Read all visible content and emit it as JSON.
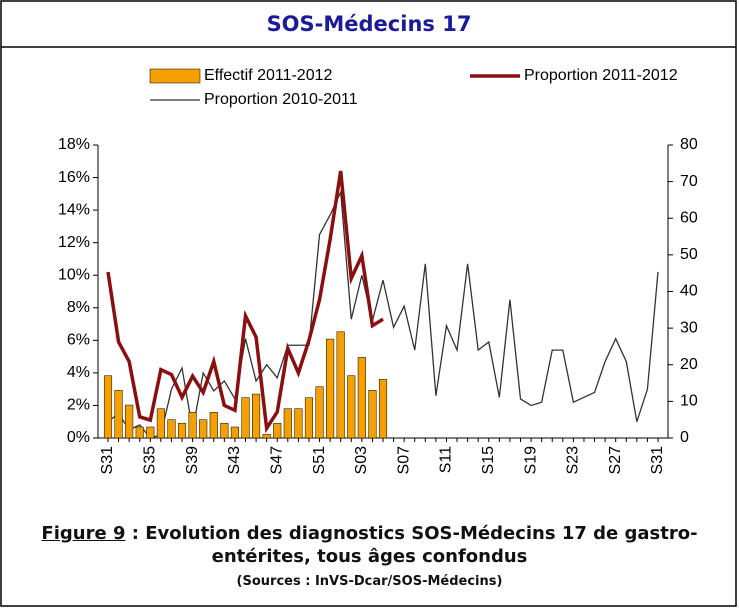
{
  "header": {
    "title": "SOS-Médecins 17"
  },
  "chart_data": {
    "type": "bar-line",
    "categories": [
      "S31",
      null,
      null,
      null,
      "S35",
      null,
      null,
      null,
      "S39",
      null,
      null,
      null,
      "S43",
      null,
      null,
      null,
      "S47",
      null,
      null,
      null,
      "S51",
      null,
      null,
      null,
      "S03",
      null,
      null,
      null,
      "S07",
      null,
      null,
      null,
      "S11",
      null,
      null,
      null,
      "S15",
      null,
      null,
      null,
      "S19",
      null,
      null,
      null,
      "S23",
      null,
      null,
      null,
      "S27",
      null,
      null,
      null,
      "S31"
    ],
    "series": [
      {
        "name": "Effectif 2011-2012",
        "kind": "bar",
        "axis": "y2",
        "color": "#f5a000",
        "values": [
          17,
          13,
          9,
          3,
          3,
          8,
          5,
          4,
          7,
          5,
          7,
          4,
          3,
          11,
          12,
          1,
          4,
          8,
          8,
          11,
          14,
          27,
          29,
          17,
          22,
          13,
          16,
          null,
          null,
          null,
          null,
          null,
          null,
          null,
          null,
          null,
          null,
          null,
          null,
          null,
          null,
          null,
          null,
          null,
          null,
          null,
          null,
          null,
          null,
          null,
          null,
          null,
          null
        ]
      },
      {
        "name": "Proportion 2011-2012",
        "kind": "line",
        "color": "#8b0f0f",
        "values": [
          10.2,
          5.9,
          4.7,
          1.3,
          1.1,
          4.2,
          3.9,
          2.5,
          3.8,
          2.8,
          4.7,
          2.0,
          1.7,
          7.5,
          6.2,
          0.6,
          1.6,
          5.5,
          4.0,
          6.0,
          8.5,
          12.2,
          16.4,
          9.8,
          11.2,
          6.9,
          7.3,
          null,
          null,
          null,
          null,
          null,
          null,
          null,
          null,
          null,
          null,
          null,
          null,
          null,
          null,
          null,
          null,
          null,
          null,
          null,
          null,
          null,
          null,
          null,
          null,
          null,
          null
        ]
      },
      {
        "name": "Proportion 2010-2011",
        "kind": "line",
        "color": "#333333",
        "values": [
          1.0,
          1.5,
          0.5,
          0.8,
          0.0,
          0.2,
          3.0,
          4.3,
          0.5,
          4.0,
          2.9,
          3.5,
          2.4,
          6.1,
          3.5,
          4.5,
          3.7,
          5.7,
          5.7,
          5.7,
          12.5,
          13.7,
          15.1,
          7.3,
          10.0,
          7.2,
          9.7,
          6.8,
          8.1,
          5.4,
          10.7,
          2.6,
          6.9,
          5.4,
          10.7,
          5.4,
          5.9,
          2.5,
          8.5,
          2.4,
          2.0,
          2.2,
          5.4,
          5.4,
          2.2,
          2.5,
          2.8,
          4.7,
          6.1,
          4.7,
          1.0,
          3.0,
          10.2
        ]
      }
    ],
    "ylim": [
      0,
      18
    ],
    "yticks": [
      {
        "value": 0,
        "label": "0%"
      },
      {
        "value": 2,
        "label": "2%"
      },
      {
        "value": 4,
        "label": "4%"
      },
      {
        "value": 6,
        "label": "6%"
      },
      {
        "value": 8,
        "label": "8%"
      },
      {
        "value": 10,
        "label": "10%"
      },
      {
        "value": 12,
        "label": "12%"
      },
      {
        "value": 14,
        "label": "14%"
      },
      {
        "value": 16,
        "label": "16%"
      },
      {
        "value": 18,
        "label": "18%"
      }
    ],
    "y2lim": [
      0,
      80
    ],
    "y2ticks": [
      0,
      10,
      20,
      30,
      40,
      50,
      60,
      70,
      80
    ]
  },
  "caption": {
    "figure_label": "Figure 9",
    "text": " : Evolution des diagnostics SOS-Médecins 17 de gastro-entérites, tous âges confondus",
    "source": "(Sources : InVS-Dcar/SOS-Médecins)"
  }
}
